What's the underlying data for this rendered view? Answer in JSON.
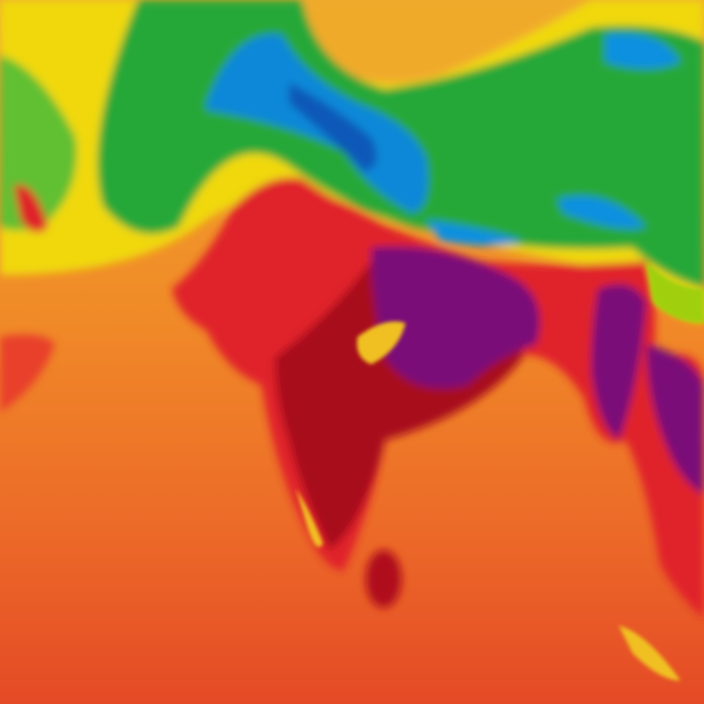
{
  "map": {
    "kind": "temperature-heatmap",
    "palette": {
      "ocean_south": "#e8562a",
      "ocean_mid": "#f07c28",
      "ocean_north": "#f2a22a",
      "warm_land": "#e01e2a",
      "hot_land": "#a0081e",
      "hottest": "#7a0a70",
      "cool_yellow": "#f0e000",
      "mild_green": "#20a830",
      "cold_blue": "#0890d8",
      "coldest": "#0858b0"
    }
  }
}
